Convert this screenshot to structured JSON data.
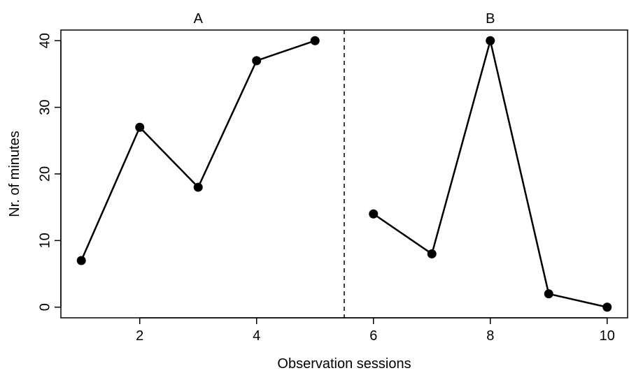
{
  "chart_data": {
    "type": "line",
    "xlabel": "Observation sessions",
    "ylabel": "Nr. of minutes",
    "xlim": [
      0.65,
      10.35
    ],
    "ylim": [
      -1.6,
      41.6
    ],
    "x_ticks": [
      2,
      4,
      6,
      8,
      10
    ],
    "y_ticks": [
      0,
      10,
      20,
      30,
      40
    ],
    "grid": false,
    "phase_change_x": 5.5,
    "series": [
      {
        "name": "A",
        "x": [
          1,
          2,
          3,
          4,
          5
        ],
        "values": [
          7,
          27,
          18,
          37,
          40
        ]
      },
      {
        "name": "B",
        "x": [
          6,
          7,
          8,
          9,
          10
        ],
        "values": [
          14,
          8,
          40,
          2,
          0
        ]
      }
    ],
    "colors": {
      "line": "#000000",
      "marker": "#000000",
      "divider": "#000000"
    }
  }
}
